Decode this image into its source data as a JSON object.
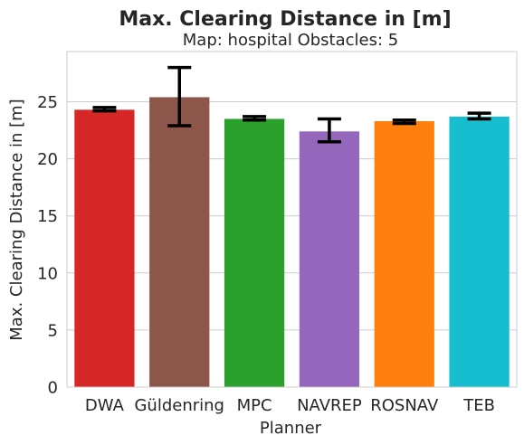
{
  "chart_data": {
    "type": "bar",
    "title": "Max. Clearing Distance in [m]",
    "subtitle": "Map: hospital Obstacles: 5",
    "xlabel": "Planner",
    "ylabel": "Max. Clearing Distance in [m]",
    "categories": [
      "DWA",
      "Güldenring",
      "MPC",
      "NAVREP",
      "ROSNAV",
      "TEB"
    ],
    "values": [
      24.3,
      25.4,
      23.5,
      22.4,
      23.3,
      23.7
    ],
    "error_low": [
      24.2,
      22.9,
      23.4,
      21.5,
      23.1,
      23.5
    ],
    "error_high": [
      24.5,
      28.0,
      23.7,
      23.5,
      23.4,
      24.0
    ],
    "colors": [
      "#d62728",
      "#8c564b",
      "#2ca02c",
      "#9467bd",
      "#ff7f0e",
      "#17becf"
    ],
    "yticks": [
      0,
      5,
      10,
      15,
      20,
      25
    ],
    "ylim": [
      0,
      29.4
    ],
    "grid": true
  }
}
